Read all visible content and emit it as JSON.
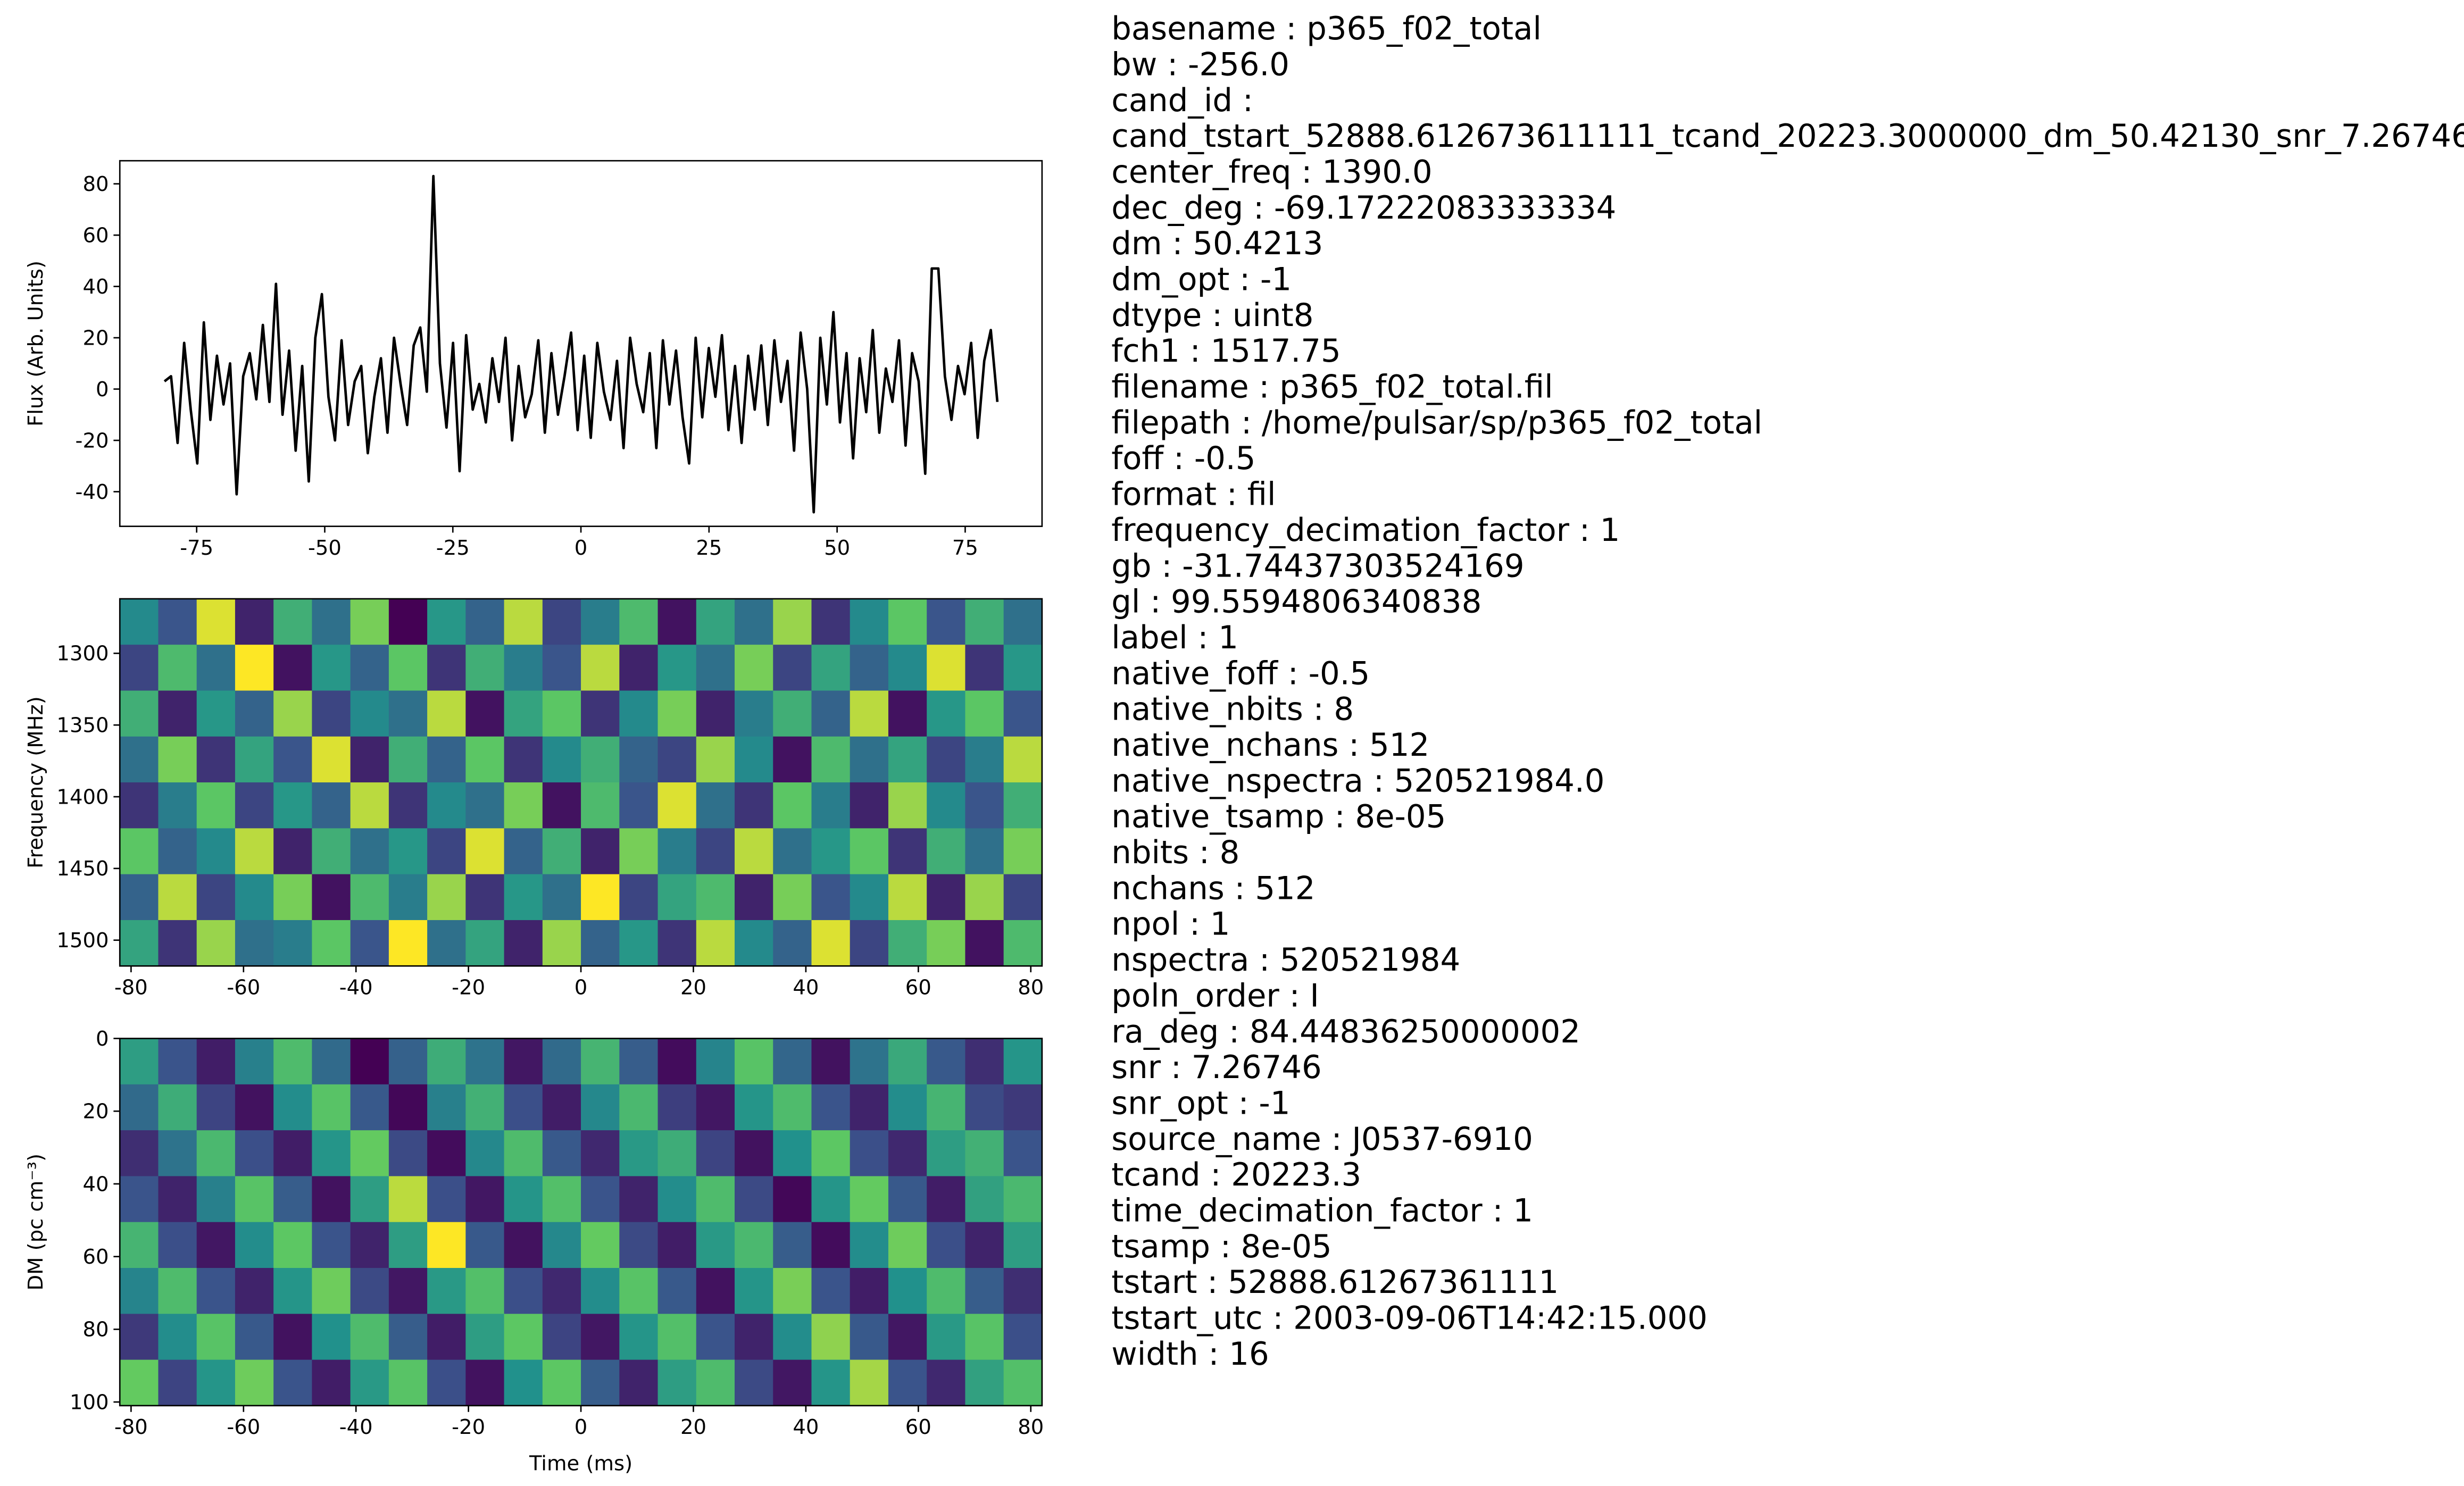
{
  "chart_data": [
    {
      "type": "line",
      "ylabel": "Flux (Arb. Units)",
      "color": "#000000",
      "x": [
        -81.28,
        -80.0,
        -78.72,
        -77.44,
        -76.16,
        -74.88,
        -73.6,
        -72.32,
        -71.04,
        -69.76,
        -68.48,
        -67.2,
        -65.92,
        -64.64,
        -63.36,
        -62.08,
        -60.8,
        -59.52,
        -58.24,
        -56.96,
        -55.68,
        -54.4,
        -53.12,
        -51.84,
        -50.56,
        -49.28,
        -48.0,
        -46.72,
        -45.44,
        -44.16,
        -42.88,
        -41.6,
        -40.32,
        -39.04,
        -37.76,
        -36.48,
        -35.2,
        -33.92,
        -32.64,
        -31.36,
        -30.08,
        -28.8,
        -27.52,
        -26.24,
        -24.96,
        -23.68,
        -22.4,
        -21.12,
        -19.84,
        -18.56,
        -17.28,
        -16.0,
        -14.72,
        -13.44,
        -12.16,
        -10.88,
        -9.6,
        -8.32,
        -7.04,
        -5.76,
        -4.48,
        -3.2,
        -1.92,
        -0.64,
        0.64,
        1.92,
        3.2,
        4.48,
        5.76,
        7.04,
        8.32,
        9.6,
        10.88,
        12.16,
        13.44,
        14.72,
        16.0,
        17.28,
        18.56,
        19.84,
        21.12,
        22.4,
        23.68,
        24.96,
        26.24,
        27.52,
        28.8,
        30.08,
        31.36,
        32.64,
        33.92,
        35.2,
        36.48,
        37.76,
        39.04,
        40.32,
        41.6,
        42.88,
        44.16,
        45.44,
        46.72,
        48.0,
        49.28,
        50.56,
        51.84,
        53.12,
        54.4,
        55.68,
        56.96,
        58.24,
        59.52,
        60.8,
        62.08,
        63.36,
        64.64,
        65.92,
        67.2,
        68.48,
        69.76,
        71.04,
        72.32,
        73.6,
        74.88,
        76.16,
        77.44,
        78.72,
        80.0,
        81.28
      ],
      "values": [
        3,
        5,
        -21,
        18,
        -8,
        -29,
        26,
        -12,
        13,
        -6,
        10,
        -41,
        5,
        14,
        -4,
        25,
        -5,
        41,
        -10,
        15,
        -24,
        9,
        -36,
        20,
        37,
        -3,
        -20,
        19,
        -14,
        3,
        9,
        -25,
        -3,
        12,
        -17,
        20,
        2,
        -14,
        17,
        24,
        -1,
        83,
        10,
        -15,
        18,
        -32,
        21,
        -8,
        2,
        -13,
        12,
        -5,
        20,
        -20,
        9,
        -11,
        -2,
        19,
        -17,
        14,
        -10,
        5,
        22,
        -16,
        13,
        -19,
        18,
        -1,
        -12,
        11,
        -23,
        20,
        2,
        -9,
        14,
        -23,
        19,
        -6,
        15,
        -11,
        -29,
        20,
        -11,
        16,
        -3,
        21,
        -16,
        9,
        -21,
        13,
        -8,
        17,
        -14,
        19,
        -5,
        11,
        -24,
        22,
        0,
        -48,
        20,
        -6,
        30,
        -13,
        14,
        -27,
        12,
        -9,
        23,
        -17,
        8,
        -5,
        19,
        -22,
        14,
        3,
        -33,
        47,
        47,
        5,
        -12,
        9,
        -2,
        18,
        -19,
        11,
        23,
        -5
      ],
      "xlim": [
        -90,
        90
      ],
      "xticks": [
        -75,
        -50,
        -25,
        0,
        25,
        50,
        75
      ],
      "ylim": [
        -53.5,
        89
      ],
      "yticks": [
        -40,
        -20,
        0,
        20,
        40,
        60,
        80
      ]
    },
    {
      "type": "heatmap",
      "ylabel": "Frequency (MHz)",
      "colormap": "viridis",
      "xlim": [
        -82,
        82
      ],
      "xticks": [
        -80,
        -60,
        -40,
        -20,
        0,
        20,
        40,
        60,
        80
      ],
      "ylim": [
        1518,
        1262
      ],
      "yticks": [
        1300,
        1350,
        1400,
        1450,
        1500
      ],
      "z": [
        [
          0.52,
          0.48,
          0.61,
          0.45,
          0.55,
          0.5,
          0.58,
          0.43,
          0.53,
          0.49,
          0.6,
          0.47,
          0.51,
          0.56,
          0.44,
          0.54,
          0.5,
          0.59,
          0.46,
          0.52,
          0.57,
          0.48,
          0.55,
          0.5
        ],
        [
          0.47,
          0.56,
          0.5,
          0.62,
          0.44,
          0.53,
          0.49,
          0.57,
          0.46,
          0.55,
          0.51,
          0.48,
          0.6,
          0.45,
          0.53,
          0.5,
          0.58,
          0.47,
          0.54,
          0.49,
          0.52,
          0.61,
          0.46,
          0.53
        ],
        [
          0.55,
          0.45,
          0.53,
          0.49,
          0.59,
          0.47,
          0.52,
          0.5,
          0.6,
          0.44,
          0.54,
          0.57,
          0.46,
          0.52,
          0.58,
          0.45,
          0.51,
          0.55,
          0.49,
          0.6,
          0.44,
          0.53,
          0.57,
          0.48
        ],
        [
          0.5,
          0.58,
          0.46,
          0.54,
          0.48,
          0.61,
          0.45,
          0.55,
          0.49,
          0.57,
          0.46,
          0.52,
          0.55,
          0.49,
          0.47,
          0.59,
          0.52,
          0.44,
          0.56,
          0.5,
          0.54,
          0.47,
          0.51,
          0.6
        ],
        [
          0.46,
          0.51,
          0.57,
          0.47,
          0.53,
          0.49,
          0.6,
          0.46,
          0.52,
          0.5,
          0.58,
          0.44,
          0.56,
          0.48,
          0.61,
          0.5,
          0.46,
          0.57,
          0.51,
          0.45,
          0.59,
          0.52,
          0.48,
          0.55
        ],
        [
          0.57,
          0.49,
          0.52,
          0.6,
          0.45,
          0.55,
          0.5,
          0.53,
          0.47,
          0.61,
          0.49,
          0.55,
          0.45,
          0.58,
          0.51,
          0.47,
          0.6,
          0.5,
          0.53,
          0.57,
          0.46,
          0.55,
          0.5,
          0.58
        ],
        [
          0.49,
          0.6,
          0.47,
          0.52,
          0.58,
          0.44,
          0.56,
          0.51,
          0.59,
          0.46,
          0.53,
          0.5,
          0.62,
          0.47,
          0.54,
          0.56,
          0.45,
          0.58,
          0.48,
          0.52,
          0.6,
          0.45,
          0.59,
          0.47
        ],
        [
          0.54,
          0.46,
          0.59,
          0.5,
          0.51,
          0.57,
          0.48,
          0.62,
          0.5,
          0.54,
          0.45,
          0.59,
          0.49,
          0.53,
          0.46,
          0.6,
          0.52,
          0.49,
          0.61,
          0.47,
          0.55,
          0.58,
          0.44,
          0.56
        ]
      ]
    },
    {
      "type": "heatmap",
      "xlabel": "Time (ms)",
      "ylabel": "DM (pc cm⁻³)",
      "colormap": "viridis",
      "xlim": [
        -82,
        82
      ],
      "xticks": [
        -80,
        -60,
        -40,
        -20,
        0,
        20,
        40,
        60,
        80
      ],
      "ylim": [
        101,
        0
      ],
      "yticks": [
        0,
        20,
        40,
        60,
        80,
        100
      ],
      "z": [
        [
          0.62,
          0.45,
          0.35,
          0.55,
          0.7,
          0.5,
          0.3,
          0.48,
          0.66,
          0.52,
          0.34,
          0.5,
          0.68,
          0.47,
          0.32,
          0.56,
          0.72,
          0.49,
          0.33,
          0.52,
          0.65,
          0.46,
          0.38,
          0.6
        ],
        [
          0.5,
          0.66,
          0.42,
          0.33,
          0.58,
          0.72,
          0.46,
          0.31,
          0.55,
          0.67,
          0.44,
          0.35,
          0.57,
          0.69,
          0.41,
          0.34,
          0.6,
          0.7,
          0.45,
          0.36,
          0.58,
          0.68,
          0.43,
          0.4
        ],
        [
          0.38,
          0.52,
          0.69,
          0.44,
          0.35,
          0.6,
          0.74,
          0.43,
          0.32,
          0.57,
          0.7,
          0.46,
          0.37,
          0.61,
          0.66,
          0.42,
          0.33,
          0.59,
          0.73,
          0.44,
          0.37,
          0.62,
          0.67,
          0.45
        ],
        [
          0.45,
          0.36,
          0.55,
          0.72,
          0.47,
          0.33,
          0.62,
          0.82,
          0.44,
          0.34,
          0.6,
          0.71,
          0.45,
          0.36,
          0.58,
          0.7,
          0.43,
          0.31,
          0.6,
          0.74,
          0.46,
          0.35,
          0.63,
          0.69
        ],
        [
          0.68,
          0.44,
          0.34,
          0.58,
          0.73,
          0.45,
          0.36,
          0.62,
          0.88,
          0.46,
          0.33,
          0.57,
          0.74,
          0.43,
          0.35,
          0.61,
          0.69,
          0.47,
          0.32,
          0.58,
          0.75,
          0.44,
          0.36,
          0.62
        ],
        [
          0.56,
          0.7,
          0.45,
          0.36,
          0.6,
          0.75,
          0.43,
          0.34,
          0.61,
          0.71,
          0.44,
          0.37,
          0.58,
          0.72,
          0.46,
          0.33,
          0.6,
          0.76,
          0.45,
          0.35,
          0.59,
          0.7,
          0.47,
          0.38
        ],
        [
          0.4,
          0.58,
          0.72,
          0.46,
          0.33,
          0.59,
          0.7,
          0.47,
          0.35,
          0.62,
          0.73,
          0.42,
          0.34,
          0.6,
          0.71,
          0.45,
          0.36,
          0.58,
          0.78,
          0.46,
          0.34,
          0.61,
          0.72,
          0.44
        ],
        [
          0.74,
          0.42,
          0.6,
          0.75,
          0.45,
          0.35,
          0.61,
          0.72,
          0.44,
          0.33,
          0.59,
          0.73,
          0.47,
          0.36,
          0.62,
          0.7,
          0.43,
          0.34,
          0.6,
          0.8,
          0.45,
          0.37,
          0.63,
          0.71
        ]
      ]
    }
  ],
  "metadata": [
    "basename : p365_f02_total",
    "bw : -256.0",
    "cand_id :",
    "cand_tstart_52888.612673611111_tcand_20223.3000000_dm_50.42130_snr_7.26746",
    "center_freq : 1390.0",
    "dec_deg : -69.17222083333334",
    "dm : 50.4213",
    "dm_opt : -1",
    "dtype : uint8",
    "fch1 : 1517.75",
    "filename : p365_f02_total.fil",
    "filepath : /home/pulsar/sp/p365_f02_total",
    "foff : -0.5",
    "format : fil",
    "frequency_decimation_factor : 1",
    "gb : -31.74437303524169",
    "gl : 99.5594806340838",
    "label : 1",
    "native_foff : -0.5",
    "native_nbits : 8",
    "native_nchans : 512",
    "native_nspectra : 520521984.0",
    "native_tsamp : 8e-05",
    "nbits : 8",
    "nchans : 512",
    "npol : 1",
    "nspectra : 520521984",
    "poln_order : I",
    "ra_deg : 84.44836250000002",
    "snr : 7.26746",
    "snr_opt : -1",
    "source_name : J0537-6910",
    "tcand : 20223.3",
    "time_decimation_factor : 1",
    "tsamp : 8e-05",
    "tstart : 52888.61267361111",
    "tstart_utc : 2003-09-06T14:42:15.000",
    "width : 16"
  ]
}
